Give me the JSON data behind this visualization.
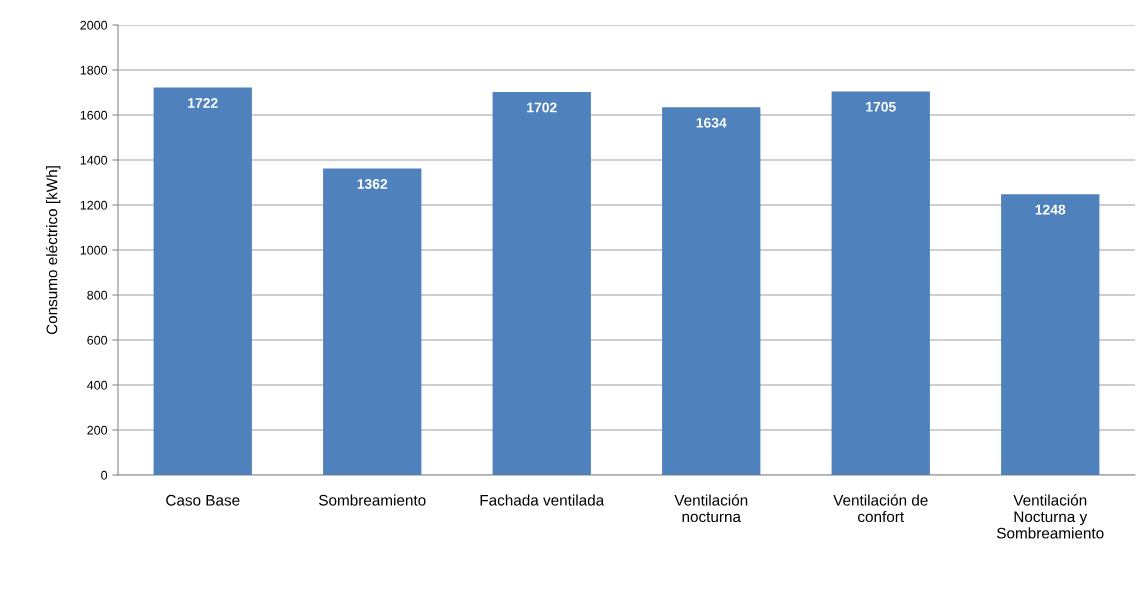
{
  "chart_data": {
    "type": "bar",
    "ylabel": "Consumo eléctrico [kWh]",
    "categories": [
      "Caso Base",
      "Sombreamiento",
      "Fachada ventilada",
      "Ventilación\nnocturna",
      "Ventilación de\nconfort",
      "Ventilación\nNocturna y\nSombreamiento"
    ],
    "values": [
      1722,
      1362,
      1702,
      1634,
      1705,
      1248
    ],
    "color": "#4f81bd",
    "ylim": [
      0,
      2000
    ],
    "yticks": [
      0,
      200,
      400,
      600,
      800,
      1000,
      1200,
      1400,
      1600,
      1800,
      2000
    ],
    "grid": "y",
    "data_labels": true
  }
}
